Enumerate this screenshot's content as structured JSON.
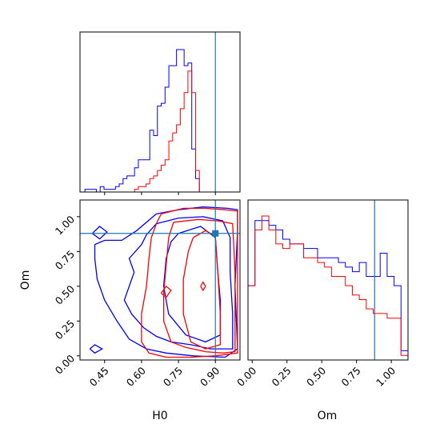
{
  "chart_data": {
    "type": "corner",
    "parameters": [
      "H0",
      "Om"
    ],
    "truth": {
      "H0": 0.9,
      "Om": 0.88
    },
    "colors": {
      "series_a": "#0000ff",
      "series_b": "#ff0000",
      "truth": "#1f77b4"
    },
    "grid": false,
    "legend": "none",
    "panels": {
      "hist_H0": {
        "type": "histogram",
        "xlim": [
          0.35,
          1.0
        ],
        "series": [
          {
            "color": "#0000ff",
            "bin_width": 0.0155,
            "start": 0.37,
            "counts": [
              1,
              1,
              1,
              0,
              2,
              1,
              1,
              1,
              2,
              3,
              5,
              6,
              6,
              9,
              12,
              12,
              12,
              23,
              21,
              32,
              33,
              39,
              47,
              47,
              53,
              53,
              47,
              48,
              16,
              5
            ]
          },
          {
            "color": "#ff0000",
            "bin_width": 0.0155,
            "start": 0.37,
            "counts": [
              0,
              0,
              0,
              0,
              0,
              0,
              0,
              0,
              0,
              0,
              0,
              0,
              0,
              1,
              2,
              2,
              3,
              5,
              6,
              8,
              10,
              12,
              19,
              22,
              25,
              31,
              37,
              45,
              37,
              8
            ]
          }
        ]
      },
      "hist_Om": {
        "type": "histogram",
        "xlim": [
          -0.03,
          1.12
        ],
        "series": [
          {
            "color": "#0000ff",
            "bin_width": 0.05,
            "start": -0.03,
            "counts": [
              16,
              30,
              30,
              29,
              28,
              26,
              25,
              25,
              24,
              24,
              22,
              22,
              22,
              21,
              20,
              19,
              21,
              18,
              18,
              23,
              18,
              16,
              2
            ]
          },
          {
            "color": "#ff0000",
            "bin_width": 0.05,
            "start": -0.03,
            "counts": [
              16,
              28,
              31,
              28,
              25,
              24,
              25,
              25,
              22,
              22,
              21,
              20,
              18,
              18,
              16,
              14,
              13,
              11,
              10,
              10,
              9,
              9,
              1
            ]
          }
        ]
      },
      "contour": {
        "type": "contour",
        "xlim": [
          0.35,
          1.0
        ],
        "ylim": [
          -0.03,
          1.12
        ],
        "levels": [
          {
            "color": "#0000ff",
            "points": [
              [
                0.66,
                1.02
              ],
              [
                0.75,
                1.05
              ],
              [
                0.85,
                1.07
              ],
              [
                0.95,
                1.06
              ],
              [
                0.99,
                1.05
              ],
              [
                0.99,
                0.9
              ],
              [
                0.98,
                0.5
              ],
              [
                0.99,
                0.05
              ],
              [
                0.94,
                -0.01
              ],
              [
                0.81,
                0.0
              ],
              [
                0.7,
                0.02
              ],
              [
                0.62,
                0.05
              ],
              [
                0.55,
                0.12
              ],
              [
                0.5,
                0.25
              ],
              [
                0.45,
                0.4
              ],
              [
                0.42,
                0.55
              ],
              [
                0.41,
                0.7
              ],
              [
                0.41,
                0.8
              ],
              [
                0.45,
                0.83
              ],
              [
                0.52,
                0.83
              ],
              [
                0.58,
                0.9
              ],
              [
                0.66,
                1.02
              ]
            ]
          },
          {
            "color": "#0000ff",
            "points": [
              [
                0.66,
                0.95
              ],
              [
                0.75,
                0.99
              ],
              [
                0.85,
                1.0
              ],
              [
                0.93,
                0.97
              ],
              [
                0.96,
                0.85
              ],
              [
                0.96,
                0.6
              ],
              [
                0.97,
                0.3
              ],
              [
                0.97,
                0.05
              ],
              [
                0.88,
                0.05
              ],
              [
                0.8,
                0.08
              ],
              [
                0.72,
                0.1
              ],
              [
                0.66,
                0.14
              ],
              [
                0.61,
                0.2
              ],
              [
                0.56,
                0.3
              ],
              [
                0.53,
                0.4
              ],
              [
                0.55,
                0.5
              ],
              [
                0.57,
                0.6
              ],
              [
                0.55,
                0.7
              ],
              [
                0.6,
                0.8
              ],
              [
                0.62,
                0.87
              ],
              [
                0.66,
                0.95
              ]
            ]
          },
          {
            "color": "#0000ff",
            "points": [
              [
                0.75,
                0.88
              ],
              [
                0.84,
                0.93
              ],
              [
                0.9,
                0.85
              ],
              [
                0.91,
                0.6
              ],
              [
                0.92,
                0.4
              ],
              [
                0.92,
                0.15
              ],
              [
                0.86,
                0.1
              ],
              [
                0.78,
                0.15
              ],
              [
                0.71,
                0.3
              ],
              [
                0.69,
                0.5
              ],
              [
                0.7,
                0.7
              ],
              [
                0.72,
                0.82
              ],
              [
                0.75,
                0.88
              ]
            ]
          },
          {
            "color": "#0000ff",
            "points": [
              [
                0.4,
                0.88
              ],
              [
                0.43,
                0.84
              ],
              [
                0.46,
                0.89
              ],
              [
                0.43,
                0.93
              ],
              [
                0.4,
                0.88
              ]
            ]
          },
          {
            "color": "#0000ff",
            "points": [
              [
                0.39,
                0.05
              ],
              [
                0.41,
                0.02
              ],
              [
                0.44,
                0.05
              ],
              [
                0.41,
                0.08
              ],
              [
                0.39,
                0.05
              ]
            ]
          },
          {
            "color": "#ff0000",
            "points": [
              [
                0.68,
                1.02
              ],
              [
                0.77,
                1.06
              ],
              [
                0.86,
                1.06
              ],
              [
                0.94,
                1.05
              ],
              [
                0.99,
                1.04
              ],
              [
                0.99,
                0.5
              ],
              [
                0.99,
                0.02
              ],
              [
                0.9,
                0.0
              ],
              [
                0.8,
                -0.01
              ],
              [
                0.7,
                -0.01
              ],
              [
                0.63,
                0.02
              ],
              [
                0.6,
                0.1
              ],
              [
                0.6,
                0.3
              ],
              [
                0.62,
                0.5
              ],
              [
                0.63,
                0.7
              ],
              [
                0.64,
                0.85
              ],
              [
                0.66,
                0.95
              ],
              [
                0.68,
                1.02
              ]
            ]
          },
          {
            "color": "#ff0000",
            "points": [
              [
                0.73,
                0.96
              ],
              [
                0.83,
                0.98
              ],
              [
                0.91,
                0.97
              ],
              [
                0.97,
                0.95
              ],
              [
                0.98,
                0.6
              ],
              [
                0.98,
                0.03
              ],
              [
                0.93,
                0.02
              ],
              [
                0.86,
                0.03
              ],
              [
                0.78,
                0.06
              ],
              [
                0.72,
                0.1
              ],
              [
                0.69,
                0.25
              ],
              [
                0.69,
                0.45
              ],
              [
                0.7,
                0.65
              ],
              [
                0.71,
                0.85
              ],
              [
                0.73,
                0.96
              ]
            ]
          },
          {
            "color": "#ff0000",
            "points": [
              [
                0.81,
                0.85
              ],
              [
                0.86,
                0.9
              ],
              [
                0.9,
                0.86
              ],
              [
                0.91,
                0.6
              ],
              [
                0.92,
                0.3
              ],
              [
                0.92,
                0.08
              ],
              [
                0.86,
                0.05
              ],
              [
                0.8,
                0.1
              ],
              [
                0.77,
                0.3
              ],
              [
                0.77,
                0.55
              ],
              [
                0.79,
                0.75
              ],
              [
                0.81,
                0.85
              ]
            ]
          },
          {
            "color": "#ff0000",
            "points": [
              [
                0.68,
                0.45
              ],
              [
                0.7,
                0.42
              ],
              [
                0.72,
                0.47
              ],
              [
                0.7,
                0.5
              ],
              [
                0.68,
                0.45
              ]
            ]
          },
          {
            "color": "#ff0000",
            "points": [
              [
                0.84,
                0.5
              ],
              [
                0.85,
                0.47
              ],
              [
                0.86,
                0.5
              ],
              [
                0.85,
                0.53
              ],
              [
                0.84,
                0.5
              ]
            ]
          }
        ]
      }
    },
    "axes": {
      "x_H0": {
        "label": "H0",
        "ticks": [
          0.45,
          0.6,
          0.75,
          0.9
        ],
        "tick_labels": [
          "0.45",
          "0.60",
          "0.75",
          "0.90"
        ]
      },
      "y_Om": {
        "label": "Om",
        "ticks": [
          0.0,
          0.25,
          0.5,
          0.75,
          1.0
        ],
        "tick_labels": [
          "0.00",
          "0.25",
          "0.50",
          "0.75",
          "1.00"
        ]
      },
      "x_Om": {
        "label": "Om",
        "ticks": [
          0.0,
          0.25,
          0.5,
          0.75,
          1.0
        ],
        "tick_labels": [
          "0.00",
          "0.25",
          "0.50",
          "0.75",
          "1.00"
        ]
      }
    }
  }
}
